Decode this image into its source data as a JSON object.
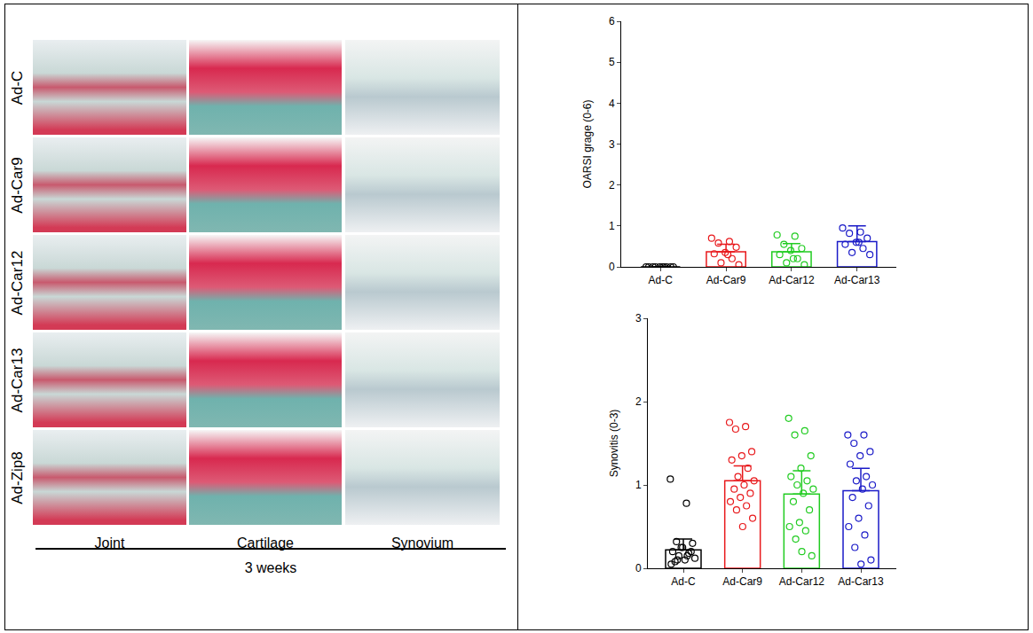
{
  "figure_panel": {
    "rows": [
      "Ad-C",
      "Ad-Car9",
      "Ad-Car12",
      "Ad-Car13",
      "Ad-Zip8"
    ],
    "columns": [
      "Joint",
      "Cartilage",
      "Synovium"
    ],
    "caption": "3 weeks"
  },
  "chart_data": [
    {
      "type": "bar",
      "y_label": "OARSI grage (0-6)",
      "categories": [
        "Ad-C",
        "Ad-Car9",
        "Ad-Car12",
        "Ad-Car13"
      ],
      "values": [
        0,
        0.37,
        0.37,
        0.62
      ],
      "error": [
        0,
        0.18,
        0.2,
        0.38
      ],
      "colors": [
        "#000000",
        "#e8191c",
        "#22cc22",
        "#1b1bc8"
      ],
      "points": [
        [
          0,
          0,
          0,
          0,
          0,
          0,
          0,
          0,
          0,
          0
        ],
        [
          0.7,
          0.62,
          0.58,
          0.48,
          0.35,
          0.32,
          0.2,
          0.1,
          0.05,
          0.3
        ],
        [
          0.78,
          0.75,
          0.55,
          0.45,
          0.4,
          0.3,
          0.2,
          0.1,
          0.05,
          0.2
        ],
        [
          0.95,
          0.85,
          0.82,
          0.7,
          0.6,
          0.55,
          0.45,
          0.35,
          0.3,
          0.6
        ]
      ],
      "marker": "circle-open",
      "ylim": [
        0,
        6
      ],
      "yticks": [
        0,
        1,
        2,
        3,
        4,
        5,
        6
      ],
      "grid": false
    },
    {
      "type": "bar",
      "y_label": "Synovitis (0-3)",
      "categories": [
        "Ad-C",
        "Ad-Car9",
        "Ad-Car12",
        "Ad-Car13"
      ],
      "values": [
        0.22,
        1.05,
        0.89,
        0.93
      ],
      "error": [
        0.13,
        0.18,
        0.28,
        0.27
      ],
      "colors": [
        "#000000",
        "#e8191c",
        "#22cc22",
        "#1b1bc8"
      ],
      "points": [
        [
          1.07,
          0.78,
          0.32,
          0.3,
          0.25,
          0.2,
          0.18,
          0.15,
          0.12,
          0.1,
          0.08,
          0.2,
          0.25,
          0.05,
          0.15,
          0.1
        ],
        [
          1.75,
          1.7,
          1.67,
          1.4,
          1.35,
          1.3,
          1.2,
          1.1,
          1.05,
          1.0,
          0.95,
          0.9,
          0.85,
          0.8,
          0.75,
          0.7,
          0.6,
          0.5
        ],
        [
          1.8,
          1.65,
          1.6,
          1.35,
          1.2,
          1.1,
          1.05,
          1.0,
          0.95,
          0.9,
          0.8,
          0.7,
          0.55,
          0.5,
          0.45,
          0.35,
          0.15,
          0.2
        ],
        [
          1.6,
          1.6,
          1.5,
          1.4,
          1.35,
          1.25,
          1.1,
          1.05,
          1.0,
          0.95,
          0.85,
          0.75,
          0.6,
          0.5,
          0.4,
          0.25,
          0.1,
          0.05
        ]
      ],
      "marker": "circle-open",
      "ylim": [
        0,
        3
      ],
      "yticks": [
        0,
        1,
        2,
        3
      ],
      "grid": false
    }
  ]
}
